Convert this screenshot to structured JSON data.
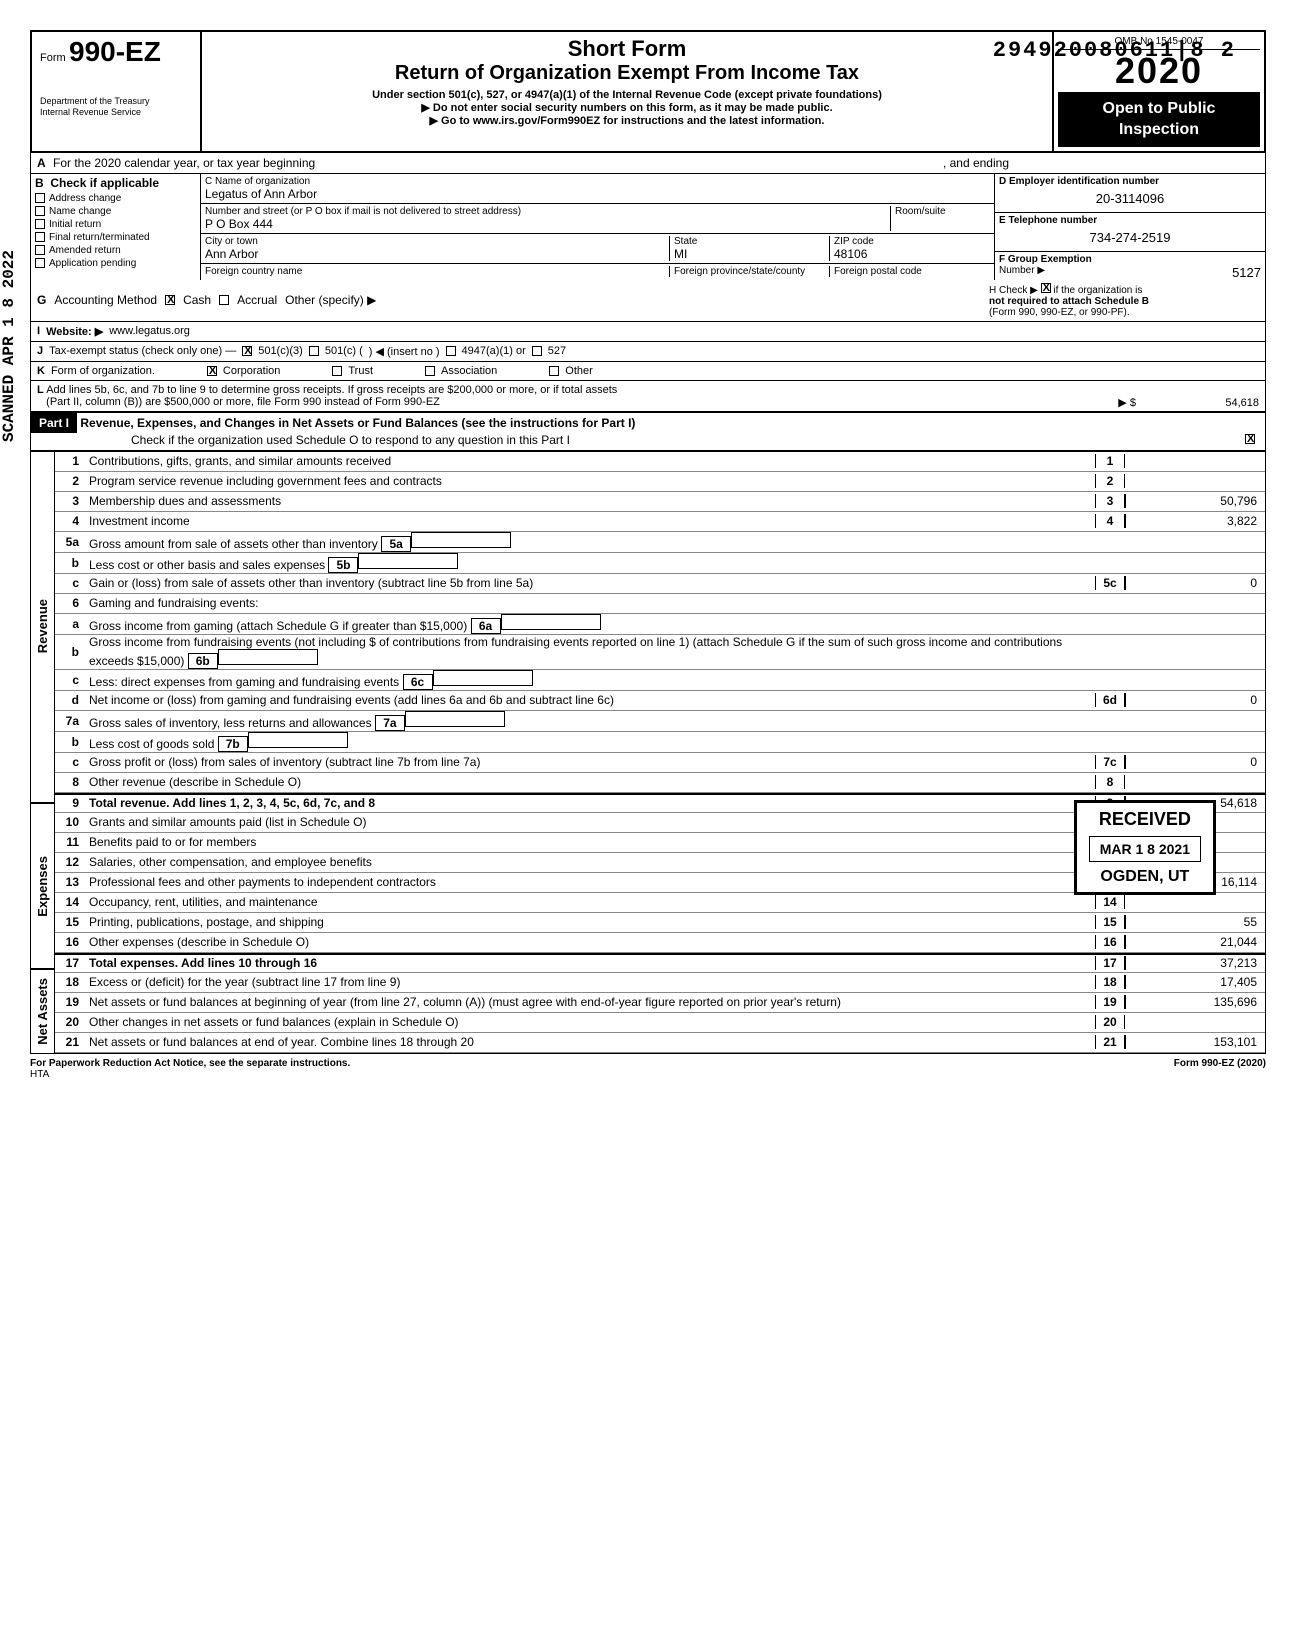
{
  "barcode": "294920080611|8  2",
  "header": {
    "form_prefix": "Form",
    "form_no": "990-EZ",
    "dept1": "Department of the Treasury",
    "dept2": "Internal Revenue Service",
    "short_form": "Short Form",
    "return_title": "Return of Organization Exempt From Income Tax",
    "subtitle": "Under section 501(c), 527, or 4947(a)(1) of the Internal Revenue Code (except private foundations)",
    "instr1": "Do not enter social security numbers on this form, as it may be made public.",
    "instr2": "Go to www.irs.gov/Form990EZ for instructions and the latest information.",
    "omb": "OMB No 1545-0047",
    "year": "2020",
    "open1": "Open to Public",
    "open2": "Inspection"
  },
  "row_a": {
    "label": "A",
    "text1": "For the 2020 calendar year, or tax year beginning",
    "text2": ", and ending"
  },
  "col_b": {
    "label": "B",
    "hdr": "Check if applicable",
    "items": [
      "Address change",
      "Name change",
      "Initial return",
      "Final return/terminated",
      "Amended return",
      "Application pending"
    ]
  },
  "col_c": {
    "name_lbl": "C  Name of organization",
    "name_val": "Legatus of Ann Arbor",
    "addr_lbl": "Number and street (or P O  box if mail is not delivered to street address)",
    "addr_val": "P O Box 444",
    "room_lbl": "Room/suite",
    "city_lbl": "City or town",
    "city_val": "Ann Arbor",
    "state_lbl": "State",
    "state_val": "MI",
    "zip_lbl": "ZIP code",
    "zip_val": "48106",
    "foreign_lbl": "Foreign country name",
    "fprov_lbl": "Foreign province/state/county",
    "fpostal_lbl": "Foreign postal code"
  },
  "col_de": {
    "d_lbl": "D  Employer identification number",
    "d_val": "20-3114096",
    "e_lbl": "E  Telephone number",
    "e_val": "734-274-2519",
    "f_lbl": "F  Group Exemption",
    "f_lbl2": "Number ▶",
    "f_val": "5127"
  },
  "row_g": {
    "g": "G",
    "acct": "Accounting Method",
    "cash": "Cash",
    "accrual": "Accrual",
    "other": "Other (specify)  ▶",
    "h": "H  Check ▶",
    "h2": "if the organization is",
    "h3": "not required to attach Schedule B",
    "h4": "(Form 990, 990-EZ, or 990-PF)."
  },
  "row_i": {
    "i": "I",
    "web_lbl": "Website: ▶",
    "web_val": "www.legatus.org"
  },
  "row_j": {
    "j": "J",
    "lbl": "Tax-exempt status (check only one) —",
    "c3": "501(c)(3)",
    "c": "501(c) (",
    "insert": ") ◀ (insert no )",
    "a1": "4947(a)(1) or",
    "s527": "527"
  },
  "row_k": {
    "k": "K",
    "lbl": "Form of organization.",
    "corp": "Corporation",
    "trust": "Trust",
    "assoc": "Association",
    "other": "Other"
  },
  "row_l": {
    "l": "L",
    "text1": "Add lines 5b, 6c, and 7b to line 9 to determine gross receipts. If gross receipts are $200,000 or more, or if total assets",
    "text2": "(Part II, column (B)) are $500,000 or more, file Form 990 instead of Form 990-EZ",
    "arrow": "▶ $",
    "val": "54,618"
  },
  "part1": {
    "label": "Part I",
    "title": "Revenue, Expenses, and Changes in Net Assets or Fund Balances (see the instructions for Part I)",
    "check_o": "Check if the organization used Schedule O to respond to any question in this Part I"
  },
  "sections": {
    "revenue": "Revenue",
    "expenses": "Expenses",
    "netassets": "Net Assets"
  },
  "lines": [
    {
      "no": "1",
      "desc": "Contributions, gifts, grants, and similar amounts received",
      "cell": "1",
      "val": ""
    },
    {
      "no": "2",
      "desc": "Program service revenue including government fees and contracts",
      "cell": "2",
      "val": ""
    },
    {
      "no": "3",
      "desc": "Membership dues and assessments",
      "cell": "3",
      "val": "50,796"
    },
    {
      "no": "4",
      "desc": "Investment income",
      "cell": "4",
      "val": "3,822"
    },
    {
      "no": "5a",
      "desc": "Gross amount from sale of assets other than inventory",
      "sub": "5a",
      "subval": ""
    },
    {
      "no": "b",
      "desc": "Less  cost or other basis and sales expenses",
      "sub": "5b",
      "subval": ""
    },
    {
      "no": "c",
      "desc": "Gain or (loss) from sale of assets other than inventory (subtract line 5b from line 5a)",
      "cell": "5c",
      "val": "0"
    },
    {
      "no": "6",
      "desc": "Gaming and fundraising events:"
    },
    {
      "no": "a",
      "desc": "Gross income from gaming (attach Schedule G if greater than $15,000)",
      "sub": "6a",
      "subval": ""
    },
    {
      "no": "b",
      "desc": "Gross income from fundraising events (not including    $                 of contributions from fundraising events reported on line 1) (attach Schedule G if the sum of such gross income and contributions exceeds $15,000)",
      "sub": "6b",
      "subval": ""
    },
    {
      "no": "c",
      "desc": "Less: direct expenses from gaming and fundraising events",
      "sub": "6c",
      "subval": ""
    },
    {
      "no": "d",
      "desc": "Net income or (loss) from gaming and fundraising events (add lines 6a and 6b and subtract line 6c)",
      "cell": "6d",
      "val": "0"
    },
    {
      "no": "7a",
      "desc": "Gross sales of inventory, less returns and allowances",
      "sub": "7a",
      "subval": ""
    },
    {
      "no": "b",
      "desc": "Less  cost of goods sold",
      "sub": "7b",
      "subval": ""
    },
    {
      "no": "c",
      "desc": "Gross profit or (loss) from sales of inventory (subtract line 7b from line 7a)",
      "cell": "7c",
      "val": "0"
    },
    {
      "no": "8",
      "desc": "Other revenue (describe in Schedule O)",
      "cell": "8",
      "val": ""
    },
    {
      "no": "9",
      "desc": "Total revenue. Add lines 1, 2, 3, 4, 5c, 6d, 7c, and 8",
      "cell": "9",
      "val": "54,618",
      "bold": true
    },
    {
      "no": "10",
      "desc": "Grants and similar amounts paid (list in Schedule O)",
      "cell": "10",
      "val": ""
    },
    {
      "no": "11",
      "desc": "Benefits paid to or for members",
      "cell": "11",
      "val": ""
    },
    {
      "no": "12",
      "desc": "Salaries, other compensation, and employee benefits",
      "cell": "12",
      "val": ""
    },
    {
      "no": "13",
      "desc": "Professional fees and other payments to independent contractors",
      "cell": "13",
      "val": "16,114"
    },
    {
      "no": "14",
      "desc": "Occupancy, rent, utilities, and maintenance",
      "cell": "14",
      "val": ""
    },
    {
      "no": "15",
      "desc": "Printing, publications, postage, and shipping",
      "cell": "15",
      "val": "55"
    },
    {
      "no": "16",
      "desc": "Other expenses (describe in Schedule O)",
      "cell": "16",
      "val": "21,044"
    },
    {
      "no": "17",
      "desc": "Total expenses. Add lines 10 through 16",
      "cell": "17",
      "val": "37,213",
      "bold": true
    },
    {
      "no": "18",
      "desc": "Excess or (deficit) for the year (subtract line 17 from line 9)",
      "cell": "18",
      "val": "17,405"
    },
    {
      "no": "19",
      "desc": "Net assets or fund balances at beginning of year (from line 27, column (A)) (must agree with end-of-year figure reported on prior year's return)",
      "cell": "19",
      "val": "135,696"
    },
    {
      "no": "20",
      "desc": "Other changes in net assets or fund balances (explain in Schedule O)",
      "cell": "20",
      "val": ""
    },
    {
      "no": "21",
      "desc": "Net assets or fund balances at end of year. Combine lines 18 through 20",
      "cell": "21",
      "val": "153,101"
    }
  ],
  "footer": {
    "left": "For Paperwork Reduction Act Notice, see the separate instructions.",
    "hta": "HTA",
    "right": "Form 990-EZ (2020)"
  },
  "received": {
    "r1": "RECEIVED",
    "r2": "MAR 1 8 2021",
    "r3": "OGDEN, UT"
  },
  "scanned": "SCANNED APR 1 8 2022"
}
